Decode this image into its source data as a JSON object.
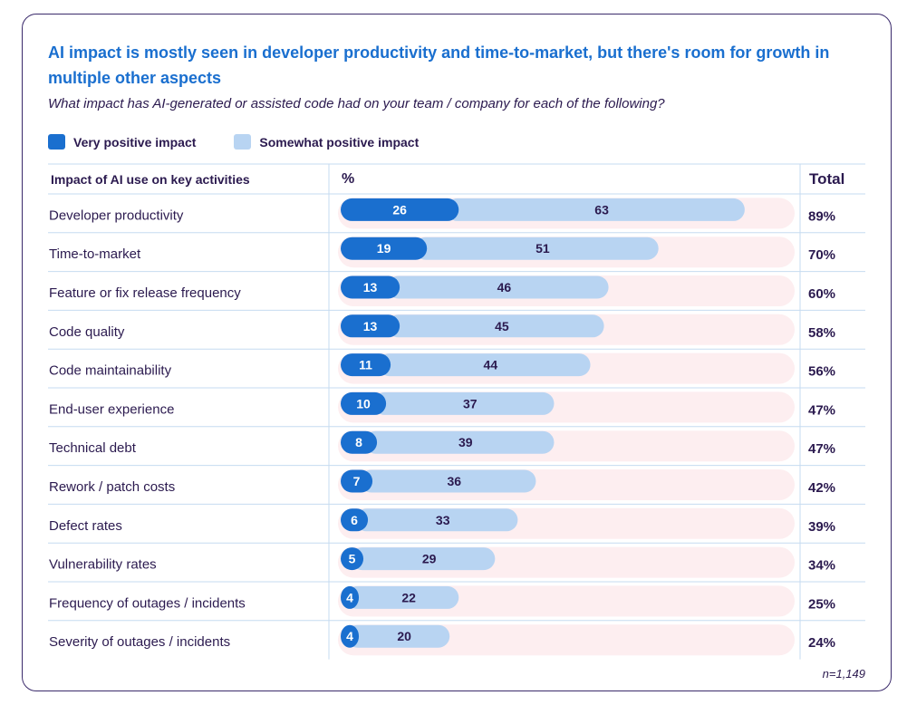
{
  "colors": {
    "very_positive": "#1a6fcf",
    "somewhat_positive": "#b8d4f2",
    "track": "#fdeef0",
    "accent": "#1a6fcf",
    "text": "#2b1a4f",
    "grid": "#c6dbf0"
  },
  "header": {
    "title": "AI impact is mostly seen in developer productivity and time-to-market, but there's room for growth in multiple other aspects",
    "subtitle": "What impact has AI-generated or assisted code had on your team / company for each of the following?"
  },
  "legend": {
    "items": [
      {
        "label": "Very positive impact"
      },
      {
        "label": "Somewhat positive impact"
      }
    ]
  },
  "table": {
    "col_activity": "Impact of AI use on key activities",
    "col_percent": "%",
    "col_total": "Total"
  },
  "footnote": "n=1,149",
  "chart_data": {
    "type": "bar",
    "orientation": "horizontal",
    "stacked": true,
    "xlim": [
      0,
      100
    ],
    "categories": [
      "Developer productivity",
      "Time-to-market",
      "Feature or fix release frequency",
      "Code quality",
      "Code maintainability",
      "End-user experience",
      "Technical debt",
      "Rework / patch costs",
      "Defect rates",
      "Vulnerability rates",
      "Frequency of outages / incidents",
      "Severity of outages / incidents"
    ],
    "series": [
      {
        "name": "Very positive impact",
        "values": [
          26,
          19,
          13,
          13,
          11,
          10,
          8,
          7,
          6,
          5,
          4,
          4
        ]
      },
      {
        "name": "Somewhat positive impact",
        "values": [
          63,
          51,
          46,
          45,
          44,
          37,
          39,
          36,
          33,
          29,
          22,
          20
        ]
      }
    ],
    "totals": [
      "89%",
      "70%",
      "60%",
      "58%",
      "56%",
      "47%",
      "47%",
      "42%",
      "39%",
      "34%",
      "25%",
      "24%"
    ],
    "legend_position": "top-left"
  }
}
